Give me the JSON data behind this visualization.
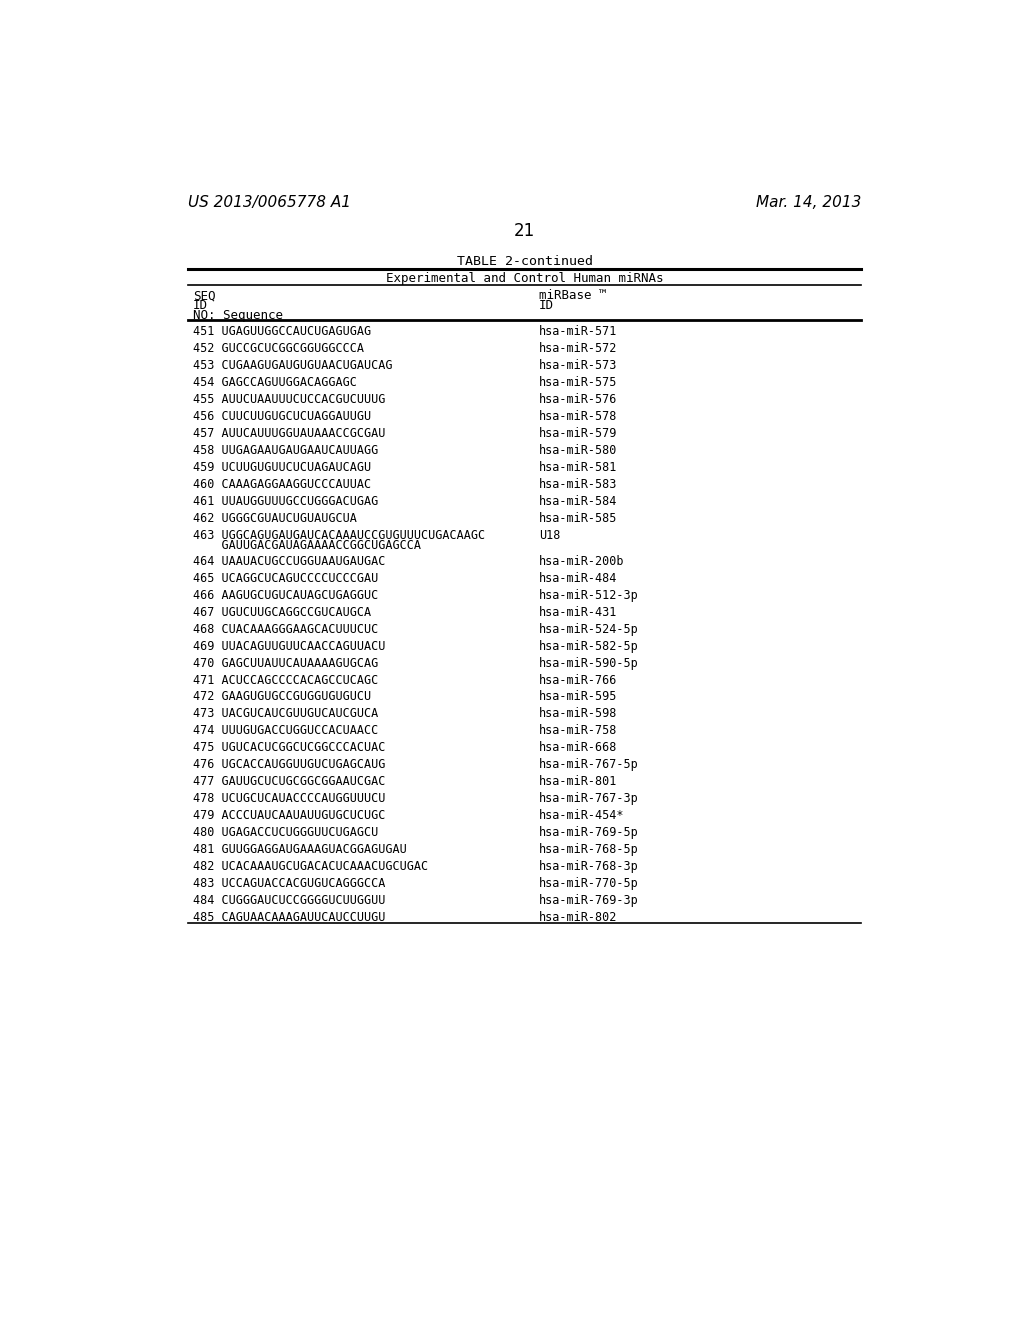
{
  "header_left": "US 2013/0065778 A1",
  "header_right": "Mar. 14, 2013",
  "page_number": "21",
  "table_title": "TABLE 2-continued",
  "table_subtitle": "Experimental and Control Human miRNAs",
  "rows": [
    [
      "451 UGAGUUGGCCAUCUGAGUGAG",
      "hsa-miR-571"
    ],
    [
      "452 GUCCGCUCGGCGGUGGCCCA",
      "hsa-miR-572"
    ],
    [
      "453 CUGAAGUGAUGUGUAACUGAUCAG",
      "hsa-miR-573"
    ],
    [
      "454 GAGCCAGUUGGACAGGAGC",
      "hsa-miR-575"
    ],
    [
      "455 AUUCUAAUUUCUCCACGUCUUUG",
      "hsa-miR-576"
    ],
    [
      "456 CUUCUUGUGCUCUAGGAUUGU",
      "hsa-miR-578"
    ],
    [
      "457 AUUCAUUUGGUAUAAACCGCGAU",
      "hsa-miR-579"
    ],
    [
      "458 UUGAGAAUGAUGAAUCAUUAGG",
      "hsa-miR-580"
    ],
    [
      "459 UCUUGUGUUCUCUAGAUCAGU",
      "hsa-miR-581"
    ],
    [
      "460 CAAAGAGGAAGGUCCCAUUAC",
      "hsa-miR-583"
    ],
    [
      "461 UUAUGGUUUGCCUGGGACUGAG",
      "hsa-miR-584"
    ],
    [
      "462 UGGGCGUAUCUGUAUGCUA",
      "hsa-miR-585"
    ],
    [
      "463 UGGCAGUGAUGAUCACAAAUCCGUGUUUCUGACAAGC\n    GAUUGACGAUAGAAAACCGGCUGAGCCA",
      "U18"
    ],
    [
      "464 UAAUACUGCCUGGUAAUGAUGAC",
      "hsa-miR-200b"
    ],
    [
      "465 UCAGGCUCAGUCCCCUCCCGAU",
      "hsa-miR-484"
    ],
    [
      "466 AAGUGCUGUCAUAGCUGAGGUC",
      "hsa-miR-512-3p"
    ],
    [
      "467 UGUCUUGCAGGCCGUCAUGCA",
      "hsa-miR-431"
    ],
    [
      "468 CUACAAAGGGAAGCACUUUCUC",
      "hsa-miR-524-5p"
    ],
    [
      "469 UUACAGUUGUUCAACCAGUUACU",
      "hsa-miR-582-5p"
    ],
    [
      "470 GAGCUUAUUCAUAAAAGUGCAG",
      "hsa-miR-590-5p"
    ],
    [
      "471 ACUCCAGCCCCACAGCCUCAGC",
      "hsa-miR-766"
    ],
    [
      "472 GAAGUGUGCCGUGGUGUGUCU",
      "hsa-miR-595"
    ],
    [
      "473 UACGUCAUCGUUGUCAUCGUCA",
      "hsa-miR-598"
    ],
    [
      "474 UUUGUGACCUGGUCCACUAACC",
      "hsa-miR-758"
    ],
    [
      "475 UGUCACUCGGCUCGGCCCACUAC",
      "hsa-miR-668"
    ],
    [
      "476 UGCACCAUGGUUGUCUGAGCAUG",
      "hsa-miR-767-5p"
    ],
    [
      "477 GAUUGCUCUGCGGCGGAAUCGAC",
      "hsa-miR-801"
    ],
    [
      "478 UCUGCUCAUACCCCAUGGUUUCU",
      "hsa-miR-767-3p"
    ],
    [
      "479 ACCCUAUCAAUAUUGUGCUCUGC",
      "hsa-miR-454*"
    ],
    [
      "480 UGAGACCUCUGGGUUCUGAGCU",
      "hsa-miR-769-5p"
    ],
    [
      "481 GUUGGAGGAUGAAAGUACGGAGUGAU",
      "hsa-miR-768-5p"
    ],
    [
      "482 UCACAAAUGCUGACACUCAAACUGCUGAC",
      "hsa-miR-768-3p"
    ],
    [
      "483 UCCAGUACCACGUGUCAGGGCCA",
      "hsa-miR-770-5p"
    ],
    [
      "484 CUGGGAUCUCCGGGGUCUUGGUU",
      "hsa-miR-769-3p"
    ],
    [
      "485 CAGUAACAAAGAUUCAUCCUUGU",
      "hsa-miR-802"
    ]
  ],
  "bg_color": "#ffffff",
  "text_color": "#000000",
  "line_color": "#000000"
}
